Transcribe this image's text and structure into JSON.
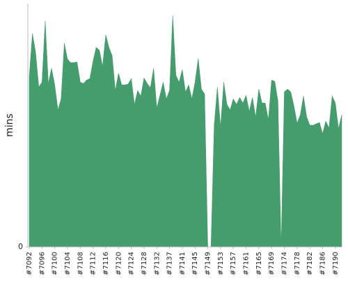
{
  "chart_data": {
    "type": "area",
    "y_label": "mins",
    "categories": [
      "#7092",
      null,
      null,
      null,
      "#7096",
      null,
      null,
      null,
      "#7100",
      null,
      null,
      null,
      "#7104",
      null,
      null,
      null,
      "#7108",
      null,
      null,
      null,
      "#7112",
      null,
      null,
      null,
      "#7116",
      null,
      null,
      null,
      "#7120",
      null,
      null,
      null,
      "#7124",
      null,
      null,
      null,
      "#7128",
      null,
      null,
      null,
      "#7132",
      null,
      null,
      null,
      "#7137",
      null,
      null,
      null,
      "#7141",
      null,
      null,
      null,
      "#7145",
      null,
      null,
      null,
      "#7149",
      null,
      null,
      null,
      "#7153",
      null,
      null,
      null,
      "#7157",
      null,
      null,
      null,
      "#7161",
      null,
      null,
      null,
      "#7165",
      null,
      null,
      null,
      "#7169",
      null,
      null,
      null,
      "#7174",
      null,
      null,
      null,
      "#7178",
      null,
      null,
      null,
      "#7182",
      null,
      null,
      null,
      "#7186",
      null,
      null,
      null,
      "#7190",
      null,
      null
    ],
    "values": [
      24.5,
      30.7,
      28,
      23,
      23.7,
      32.5,
      23.5,
      25.7,
      23.3,
      19.7,
      21.3,
      29.3,
      27,
      26.5,
      26.5,
      26.6,
      23.7,
      23.5,
      24,
      24.2,
      26.7,
      28.7,
      28.3,
      26,
      30.5,
      28.7,
      27.5,
      22.5,
      25,
      23.3,
      23.3,
      23.4,
      24.2,
      20.5,
      22.5,
      21.7,
      24.3,
      23.5,
      22.9,
      25.7,
      20,
      21.8,
      23.7,
      21.3,
      22.5,
      33.3,
      24.7,
      23.7,
      25.5,
      22.3,
      23.3,
      21.3,
      23.7,
      27.1,
      22.7,
      22,
      0,
      0,
      17.5,
      23,
      17.3,
      23.7,
      20.5,
      19.7,
      21.3,
      20.5,
      21.5,
      20.7,
      21.8,
      19.5,
      21.5,
      18.7,
      22.7,
      20.7,
      20.7,
      18.3,
      24,
      23.8,
      21,
      0,
      22.3,
      22.7,
      22.3,
      20.3,
      17.8,
      19,
      21.7,
      18.7,
      17.5,
      17.5,
      17.7,
      17.9,
      16.3,
      18.1,
      17.1,
      21.7,
      20.7,
      17,
      19
    ],
    "color": "#459c6c",
    "ylim": [
      0,
      35
    ],
    "yticks": [
      0
    ]
  }
}
